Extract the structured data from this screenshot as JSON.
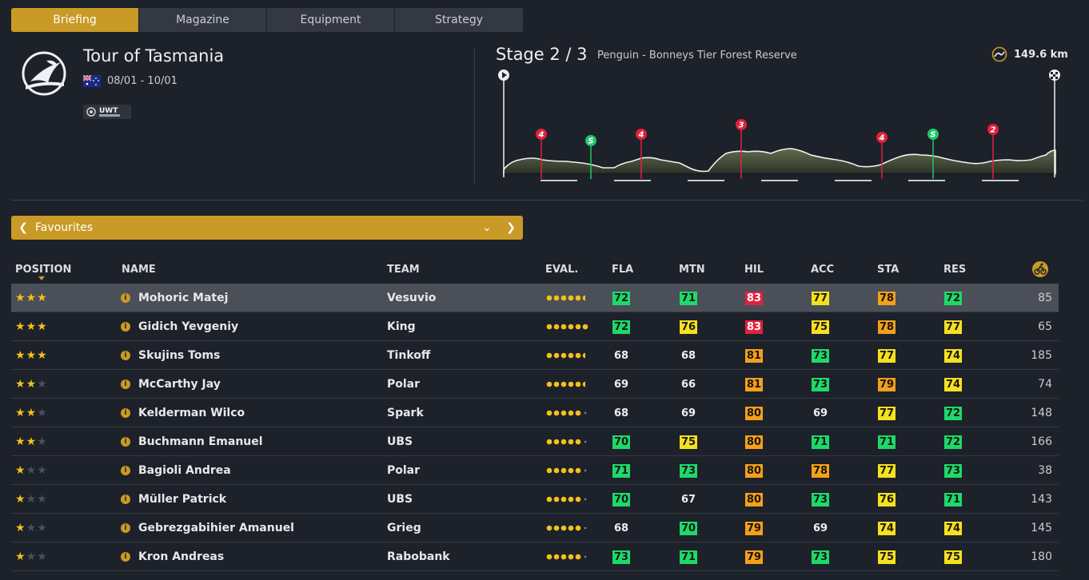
{
  "tabs": [
    {
      "label": "Briefing",
      "active": true
    },
    {
      "label": "Magazine",
      "active": false
    },
    {
      "label": "Equipment",
      "active": false
    },
    {
      "label": "Strategy",
      "active": false
    }
  ],
  "race": {
    "title": "Tour of Tasmania",
    "dates": "08/01 - 10/01",
    "flag": "australia-flag",
    "badge_text": "UWT"
  },
  "stage": {
    "title": "Stage 2 / 3",
    "route": "Penguin - Bonneys Tier Forest Reserve",
    "distance": "149.6 km",
    "markers": [
      {
        "label": "4",
        "type": "climb",
        "color": "#e2213f"
      },
      {
        "label": "S",
        "type": "sprint",
        "color": "#1fc86a"
      },
      {
        "label": "4",
        "type": "climb",
        "color": "#e2213f"
      },
      {
        "label": "3",
        "type": "climb",
        "color": "#e2213f"
      },
      {
        "label": "4",
        "type": "climb",
        "color": "#e2213f"
      },
      {
        "label": "S",
        "type": "sprint",
        "color": "#1fc86a"
      },
      {
        "label": "2",
        "type": "climb",
        "color": "#e2213f"
      }
    ]
  },
  "filter": {
    "label": "Favourites"
  },
  "columns": {
    "position": "POSITION",
    "name": "NAME",
    "team": "TEAM",
    "eval": "EVAL.",
    "fla": "FLA",
    "mtn": "MTN",
    "hil": "HIL",
    "acc": "ACC",
    "sta": "STA",
    "res": "RES",
    "last_icon": "cyclist-icon"
  },
  "colors": {
    "accent": "#c99a26",
    "green": "#1fd86a",
    "yellow": "#f5e11f",
    "orange": "#f3a01c",
    "red": "#e2213f"
  },
  "riders": [
    {
      "stars": 3,
      "name": "Mohoric Matej",
      "team": "Vesuvio",
      "eval": 5.5,
      "fla": "72",
      "mtn": "71",
      "hil": "83",
      "acc": "77",
      "sta": "78",
      "res": "72",
      "last": "85",
      "c": [
        "g",
        "g",
        "r",
        "y",
        "o",
        "g"
      ]
    },
    {
      "stars": 3,
      "name": "Gidich Yevgeniy",
      "team": "King",
      "eval": 6,
      "fla": "72",
      "mtn": "76",
      "hil": "83",
      "acc": "75",
      "sta": "78",
      "res": "77",
      "last": "65",
      "c": [
        "g",
        "y",
        "r",
        "y",
        "o",
        "y"
      ]
    },
    {
      "stars": 3,
      "name": "Skujins Toms",
      "team": "Tinkoff",
      "eval": 5.5,
      "fla": "68",
      "mtn": "68",
      "hil": "81",
      "acc": "73",
      "sta": "77",
      "res": "74",
      "last": "185",
      "c": [
        "w",
        "w",
        "o",
        "g",
        "y",
        "y"
      ]
    },
    {
      "stars": 2,
      "name": "McCarthy Jay",
      "team": "Polar",
      "eval": 5.5,
      "fla": "69",
      "mtn": "66",
      "hil": "81",
      "acc": "73",
      "sta": "79",
      "res": "74",
      "last": "74",
      "c": [
        "w",
        "w",
        "o",
        "g",
        "o",
        "y"
      ]
    },
    {
      "stars": 2,
      "name": "Kelderman Wilco",
      "team": "Spark",
      "eval": 5,
      "fla": "68",
      "mtn": "69",
      "hil": "80",
      "acc": "69",
      "sta": "77",
      "res": "72",
      "last": "148",
      "c": [
        "w",
        "w",
        "o",
        "w",
        "y",
        "g"
      ]
    },
    {
      "stars": 2,
      "name": "Buchmann Emanuel",
      "team": "UBS",
      "eval": 5,
      "fla": "70",
      "mtn": "75",
      "hil": "80",
      "acc": "71",
      "sta": "71",
      "res": "72",
      "last": "166",
      "c": [
        "g",
        "y",
        "o",
        "g",
        "g",
        "g"
      ]
    },
    {
      "stars": 1,
      "name": "Bagioli Andrea",
      "team": "Polar",
      "eval": 5,
      "fla": "71",
      "mtn": "73",
      "hil": "80",
      "acc": "78",
      "sta": "77",
      "res": "73",
      "last": "38",
      "c": [
        "g",
        "g",
        "o",
        "o",
        "y",
        "g"
      ]
    },
    {
      "stars": 1,
      "name": "Müller Patrick",
      "team": "UBS",
      "eval": 5,
      "fla": "70",
      "mtn": "67",
      "hil": "80",
      "acc": "73",
      "sta": "76",
      "res": "71",
      "last": "143",
      "c": [
        "g",
        "w",
        "o",
        "g",
        "y",
        "g"
      ]
    },
    {
      "stars": 1,
      "name": "Gebrezgabihier Amanuel",
      "team": "Grieg",
      "eval": 5,
      "fla": "68",
      "mtn": "70",
      "hil": "79",
      "acc": "69",
      "sta": "74",
      "res": "74",
      "last": "145",
      "c": [
        "w",
        "g",
        "o",
        "w",
        "y",
        "y"
      ]
    },
    {
      "stars": 1,
      "name": "Kron Andreas",
      "team": "Rabobank",
      "eval": 5,
      "fla": "73",
      "mtn": "71",
      "hil": "79",
      "acc": "73",
      "sta": "75",
      "res": "75",
      "last": "180",
      "c": [
        "g",
        "g",
        "o",
        "g",
        "y",
        "y"
      ]
    }
  ],
  "selected_row": 0
}
